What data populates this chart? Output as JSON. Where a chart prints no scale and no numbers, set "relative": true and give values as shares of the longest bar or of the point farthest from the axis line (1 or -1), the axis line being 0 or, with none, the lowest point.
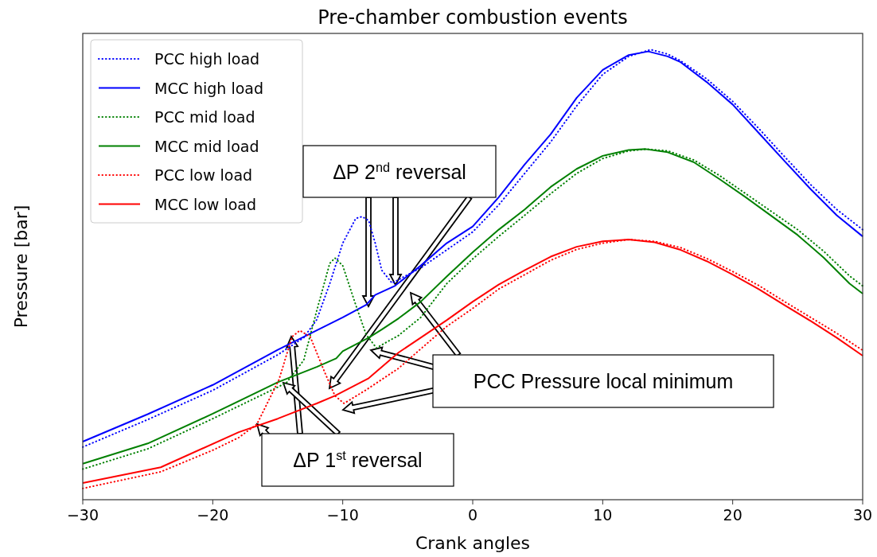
{
  "chart_data": {
    "type": "line",
    "title": "Pre-chamber combustion events",
    "xlabel": "Crank angles",
    "ylabel": "Pressure [bar]",
    "relative": true,
    "xlim": [
      -30,
      30
    ],
    "xticks": [
      {
        "value": -30,
        "label": "−30"
      },
      {
        "value": -20,
        "label": "−20"
      },
      {
        "value": -10,
        "label": "−10"
      },
      0,
      10,
      20,
      30
    ],
    "legend": "top left",
    "grid": false,
    "annotations": [
      "ΔP 2$^{nd}$ reversal",
      "PCC Pressure local minimum",
      "ΔP 1$^{st}$ reversal"
    ],
    "series": [
      {
        "name": "PCC high load",
        "color": "#0000ff",
        "line_style": "dotted",
        "x": [
          -30,
          -25,
          -20,
          -15,
          -13,
          -12,
          -11,
          -10,
          -9,
          -8.5,
          -8,
          -7.5,
          -7,
          -6.2,
          -5,
          -4,
          -2,
          0,
          2,
          4,
          6,
          8,
          10,
          12,
          13.7,
          15,
          16,
          18,
          20,
          22,
          24,
          26,
          28,
          30
        ],
        "values": [
          0.117,
          0.178,
          0.243,
          0.322,
          0.36,
          0.4,
          0.48,
          0.57,
          0.625,
          0.629,
          0.62,
          0.57,
          0.51,
          0.481,
          0.5,
          0.515,
          0.555,
          0.595,
          0.655,
          0.725,
          0.795,
          0.875,
          0.945,
          0.985,
          1.0,
          0.99,
          0.975,
          0.935,
          0.885,
          0.825,
          0.762,
          0.7,
          0.645,
          0.6
        ]
      },
      {
        "name": "MCC high load",
        "color": "#0000ff",
        "line_style": "solid",
        "x": [
          -30,
          -25,
          -20,
          -15,
          -10,
          -8.2,
          -7.5,
          -6,
          -4,
          -2,
          0,
          2,
          4,
          6,
          8,
          10,
          12,
          13.5,
          15,
          16,
          18,
          20,
          22,
          24,
          26,
          28,
          30
        ],
        "values": [
          0.129,
          0.19,
          0.255,
          0.333,
          0.405,
          0.433,
          0.455,
          0.475,
          0.52,
          0.57,
          0.607,
          0.672,
          0.745,
          0.812,
          0.893,
          0.955,
          0.988,
          0.996,
          0.985,
          0.972,
          0.928,
          0.878,
          0.815,
          0.752,
          0.69,
          0.632,
          0.585
        ]
      },
      {
        "name": "PCC mid load",
        "color": "#008000",
        "line_style": "dotted",
        "x": [
          -30,
          -25,
          -20,
          -15,
          -14.3,
          -13,
          -12,
          -11,
          -10.6,
          -10,
          -9,
          -8.2,
          -7.4,
          -7,
          -5.7,
          -4,
          -2,
          0,
          2,
          4,
          6,
          8,
          10,
          12,
          13.4,
          15,
          17,
          19,
          21,
          23,
          25,
          27,
          29,
          30
        ],
        "values": [
          0.068,
          0.113,
          0.18,
          0.25,
          0.261,
          0.31,
          0.42,
          0.525,
          0.537,
          0.52,
          0.433,
          0.367,
          0.337,
          0.344,
          0.365,
          0.405,
          0.48,
          0.535,
          0.585,
          0.632,
          0.68,
          0.725,
          0.758,
          0.775,
          0.779,
          0.775,
          0.755,
          0.72,
          0.68,
          0.64,
          0.6,
          0.552,
          0.497,
          0.475
        ]
      },
      {
        "name": "MCC mid load",
        "color": "#008000",
        "line_style": "solid",
        "x": [
          -30,
          -25,
          -20,
          -15,
          -12,
          -10.5,
          -10,
          -8,
          -7,
          -5.7,
          -4,
          -2,
          0,
          2,
          4,
          6,
          8,
          10,
          12,
          13.3,
          15,
          17,
          19,
          21,
          23,
          25,
          27,
          29,
          30
        ],
        "values": [
          0.08,
          0.125,
          0.191,
          0.261,
          0.295,
          0.314,
          0.33,
          0.36,
          0.378,
          0.403,
          0.44,
          0.496,
          0.55,
          0.6,
          0.645,
          0.695,
          0.735,
          0.764,
          0.777,
          0.779,
          0.772,
          0.75,
          0.712,
          0.672,
          0.63,
          0.588,
          0.538,
          0.48,
          0.458
        ]
      },
      {
        "name": "PCC low load",
        "color": "#ff0000",
        "line_style": "dotted",
        "x": [
          -30,
          -24,
          -20,
          -18,
          -16.6,
          -14.9,
          -13.9,
          -13.3,
          -12.5,
          -11.4,
          -10.6,
          -9.9,
          -8.2,
          -5.7,
          -4,
          -2,
          0,
          2,
          4,
          6,
          8,
          10,
          12,
          14,
          16,
          18,
          20,
          22,
          24,
          26,
          28,
          30
        ],
        "values": [
          0.025,
          0.062,
          0.11,
          0.138,
          0.168,
          0.267,
          0.362,
          0.376,
          0.362,
          0.284,
          0.231,
          0.214,
          0.244,
          0.292,
          0.335,
          0.385,
          0.425,
          0.468,
          0.5,
          0.532,
          0.556,
          0.57,
          0.578,
          0.574,
          0.56,
          0.536,
          0.507,
          0.476,
          0.44,
          0.405,
          0.37,
          0.332
        ]
      },
      {
        "name": "MCC low load",
        "color": "#ff0000",
        "line_style": "solid",
        "x": [
          -30,
          -24,
          -18,
          -15,
          -12,
          -10.6,
          -8,
          -5.7,
          -4,
          -2,
          0,
          2,
          4,
          6,
          8,
          10,
          12,
          14,
          16,
          18,
          20,
          22,
          24,
          26,
          28,
          30
        ],
        "values": [
          0.037,
          0.072,
          0.15,
          0.18,
          0.214,
          0.231,
          0.27,
          0.327,
          0.36,
          0.399,
          0.44,
          0.478,
          0.51,
          0.54,
          0.562,
          0.574,
          0.578,
          0.572,
          0.555,
          0.53,
          0.5,
          0.468,
          0.432,
          0.397,
          0.36,
          0.32
        ]
      }
    ]
  }
}
